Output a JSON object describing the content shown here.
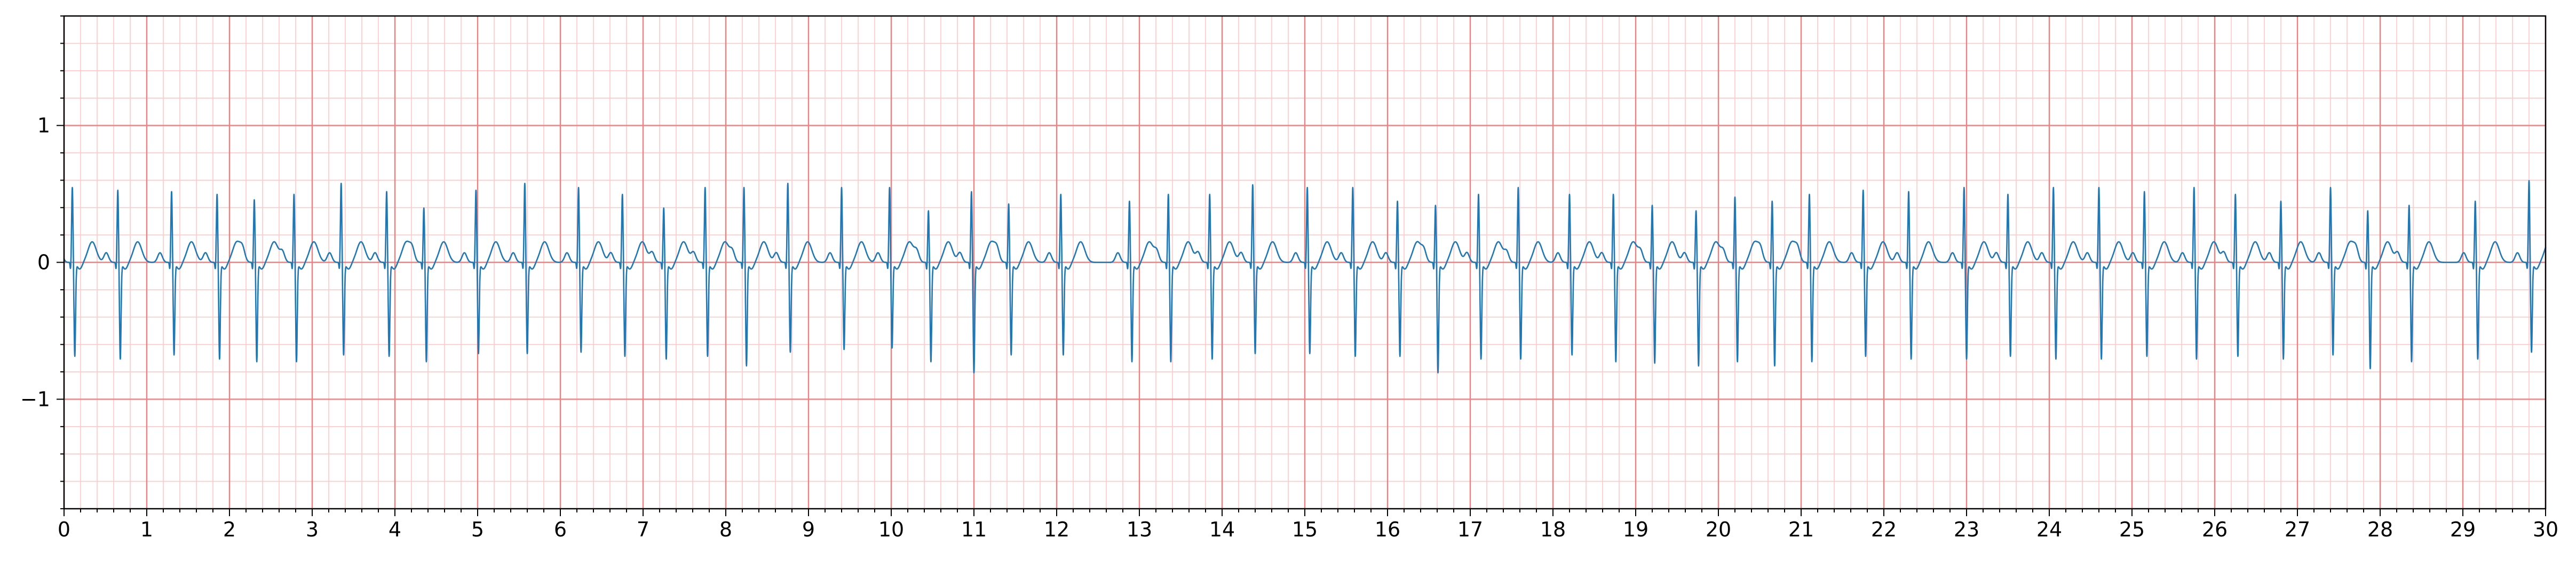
{
  "chart_data": {
    "type": "line",
    "title": "",
    "xlabel": "",
    "ylabel": "",
    "xlim": [
      0,
      30
    ],
    "ylim": [
      -1.8,
      1.8
    ],
    "grid": {
      "major_x_step": 1,
      "major_y_step": 1,
      "minor_step": 0.2,
      "major_color": "#f08080",
      "minor_color": "#ffc8c8"
    },
    "line_color": "#1f77b4",
    "x_ticks": [
      0,
      1,
      2,
      3,
      4,
      5,
      6,
      7,
      8,
      9,
      10,
      11,
      12,
      13,
      14,
      15,
      16,
      17,
      18,
      19,
      20,
      21,
      22,
      23,
      24,
      25,
      26,
      27,
      28,
      29,
      30
    ],
    "x_tick_labels": [
      "0",
      "1",
      "2",
      "3",
      "4",
      "5",
      "6",
      "7",
      "8",
      "9",
      "10",
      "11",
      "12",
      "13",
      "14",
      "15",
      "16",
      "17",
      "18",
      "19",
      "20",
      "21",
      "22",
      "23",
      "24",
      "25",
      "26",
      "27",
      "28",
      "29",
      "30"
    ],
    "y_ticks": [
      -1,
      0,
      1
    ],
    "y_tick_labels": [
      "−1",
      "0",
      "1"
    ],
    "series": [
      {
        "beats": [
          {
            "t": 0.1,
            "r": 0.55,
            "s": -0.68
          },
          {
            "t": 0.65,
            "r": 0.53,
            "s": -0.7
          },
          {
            "t": 1.3,
            "r": 0.52,
            "s": -0.67
          },
          {
            "t": 1.85,
            "r": 0.5,
            "s": -0.7
          },
          {
            "t": 2.3,
            "r": 0.46,
            "s": -0.72
          },
          {
            "t": 2.78,
            "r": 0.5,
            "s": -0.72
          },
          {
            "t": 3.35,
            "r": 0.58,
            "s": -0.67
          },
          {
            "t": 3.9,
            "r": 0.52,
            "s": -0.68
          },
          {
            "t": 4.35,
            "r": 0.4,
            "s": -0.72
          },
          {
            "t": 4.98,
            "r": 0.53,
            "s": -0.66
          },
          {
            "t": 5.57,
            "r": 0.58,
            "s": -0.66
          },
          {
            "t": 6.22,
            "r": 0.55,
            "s": -0.65
          },
          {
            "t": 6.75,
            "r": 0.5,
            "s": -0.68
          },
          {
            "t": 7.25,
            "r": 0.4,
            "s": -0.7
          },
          {
            "t": 7.75,
            "r": 0.55,
            "s": -0.68
          },
          {
            "t": 8.22,
            "r": 0.55,
            "s": -0.75
          },
          {
            "t": 8.75,
            "r": 0.58,
            "s": -0.65
          },
          {
            "t": 9.4,
            "r": 0.55,
            "s": -0.63
          },
          {
            "t": 9.98,
            "r": 0.55,
            "s": -0.62
          },
          {
            "t": 10.45,
            "r": 0.38,
            "s": -0.72
          },
          {
            "t": 10.97,
            "r": 0.52,
            "s": -0.8
          },
          {
            "t": 11.42,
            "r": 0.43,
            "s": -0.67
          },
          {
            "t": 12.05,
            "r": 0.5,
            "s": -0.67
          },
          {
            "t": 12.88,
            "r": 0.45,
            "s": -0.72
          },
          {
            "t": 13.35,
            "r": 0.5,
            "s": -0.72
          },
          {
            "t": 13.85,
            "r": 0.5,
            "s": -0.7
          },
          {
            "t": 14.37,
            "r": 0.57,
            "s": -0.66
          },
          {
            "t": 15.03,
            "r": 0.55,
            "s": -0.66
          },
          {
            "t": 15.58,
            "r": 0.55,
            "s": -0.68
          },
          {
            "t": 16.12,
            "r": 0.45,
            "s": -0.68
          },
          {
            "t": 16.58,
            "r": 0.42,
            "s": -0.8
          },
          {
            "t": 17.1,
            "r": 0.5,
            "s": -0.7
          },
          {
            "t": 17.58,
            "r": 0.55,
            "s": -0.7
          },
          {
            "t": 18.2,
            "r": 0.5,
            "s": -0.67
          },
          {
            "t": 18.73,
            "r": 0.5,
            "s": -0.72
          },
          {
            "t": 19.2,
            "r": 0.42,
            "s": -0.73
          },
          {
            "t": 19.73,
            "r": 0.38,
            "s": -0.75
          },
          {
            "t": 20.2,
            "r": 0.48,
            "s": -0.72
          },
          {
            "t": 20.65,
            "r": 0.45,
            "s": -0.75
          },
          {
            "t": 21.1,
            "r": 0.5,
            "s": -0.72
          },
          {
            "t": 21.75,
            "r": 0.53,
            "s": -0.68
          },
          {
            "t": 22.3,
            "r": 0.52,
            "s": -0.7
          },
          {
            "t": 22.97,
            "r": 0.55,
            "s": -0.7
          },
          {
            "t": 23.5,
            "r": 0.5,
            "s": -0.68
          },
          {
            "t": 24.05,
            "r": 0.55,
            "s": -0.7
          },
          {
            "t": 24.6,
            "r": 0.55,
            "s": -0.7
          },
          {
            "t": 25.15,
            "r": 0.52,
            "s": -0.68
          },
          {
            "t": 25.75,
            "r": 0.55,
            "s": -0.7
          },
          {
            "t": 26.25,
            "r": 0.5,
            "s": -0.68
          },
          {
            "t": 26.8,
            "r": 0.45,
            "s": -0.7
          },
          {
            "t": 27.4,
            "r": 0.55,
            "s": -0.67
          },
          {
            "t": 27.85,
            "r": 0.38,
            "s": -0.77
          },
          {
            "t": 28.35,
            "r": 0.42,
            "s": -0.72
          },
          {
            "t": 29.15,
            "r": 0.45,
            "s": -0.7
          },
          {
            "t": 29.8,
            "r": 0.6,
            "s": -0.65
          }
        ]
      }
    ]
  }
}
